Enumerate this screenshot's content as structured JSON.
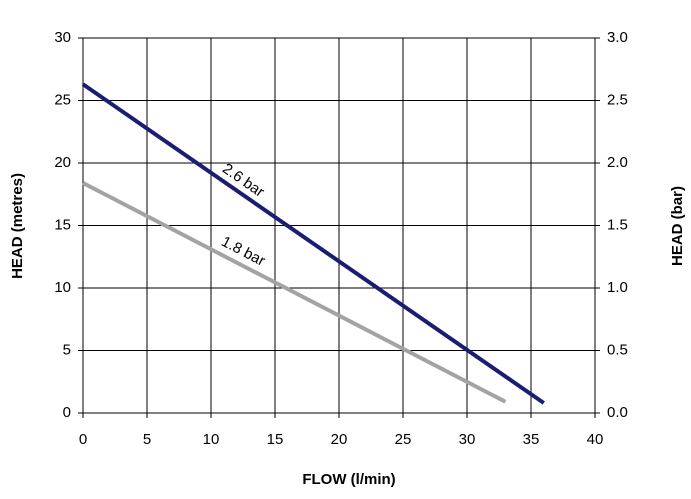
{
  "chart_data": {
    "type": "line",
    "x_label": "FLOW (l/min)",
    "y_label": "HEAD (metres)",
    "y2_label": "HEAD (bar)",
    "xlim": [
      0,
      40
    ],
    "xticks": [
      0,
      5,
      10,
      15,
      20,
      25,
      30,
      35,
      40
    ],
    "ylim": [
      0,
      30
    ],
    "yticks": [
      0,
      5,
      10,
      15,
      20,
      25,
      30
    ],
    "y2lim": [
      0,
      3
    ],
    "y2ticks": [
      {
        "value": 0,
        "label": "0.0"
      },
      0.5,
      {
        "value": 1,
        "label": "1.0"
      },
      1.5,
      {
        "value": 2,
        "label": "2.0"
      },
      2.5,
      {
        "value": 3,
        "label": "3.0"
      }
    ],
    "grid": true,
    "series": [
      {
        "name": "2.6 bar",
        "color": "#1c1c72",
        "x": [
          0,
          36
        ],
        "values": [
          26.3,
          0.8
        ]
      },
      {
        "name": "1.8 bar",
        "color": "#a3a3a3",
        "x": [
          0,
          33
        ],
        "values": [
          18.4,
          0.9
        ]
      }
    ]
  }
}
